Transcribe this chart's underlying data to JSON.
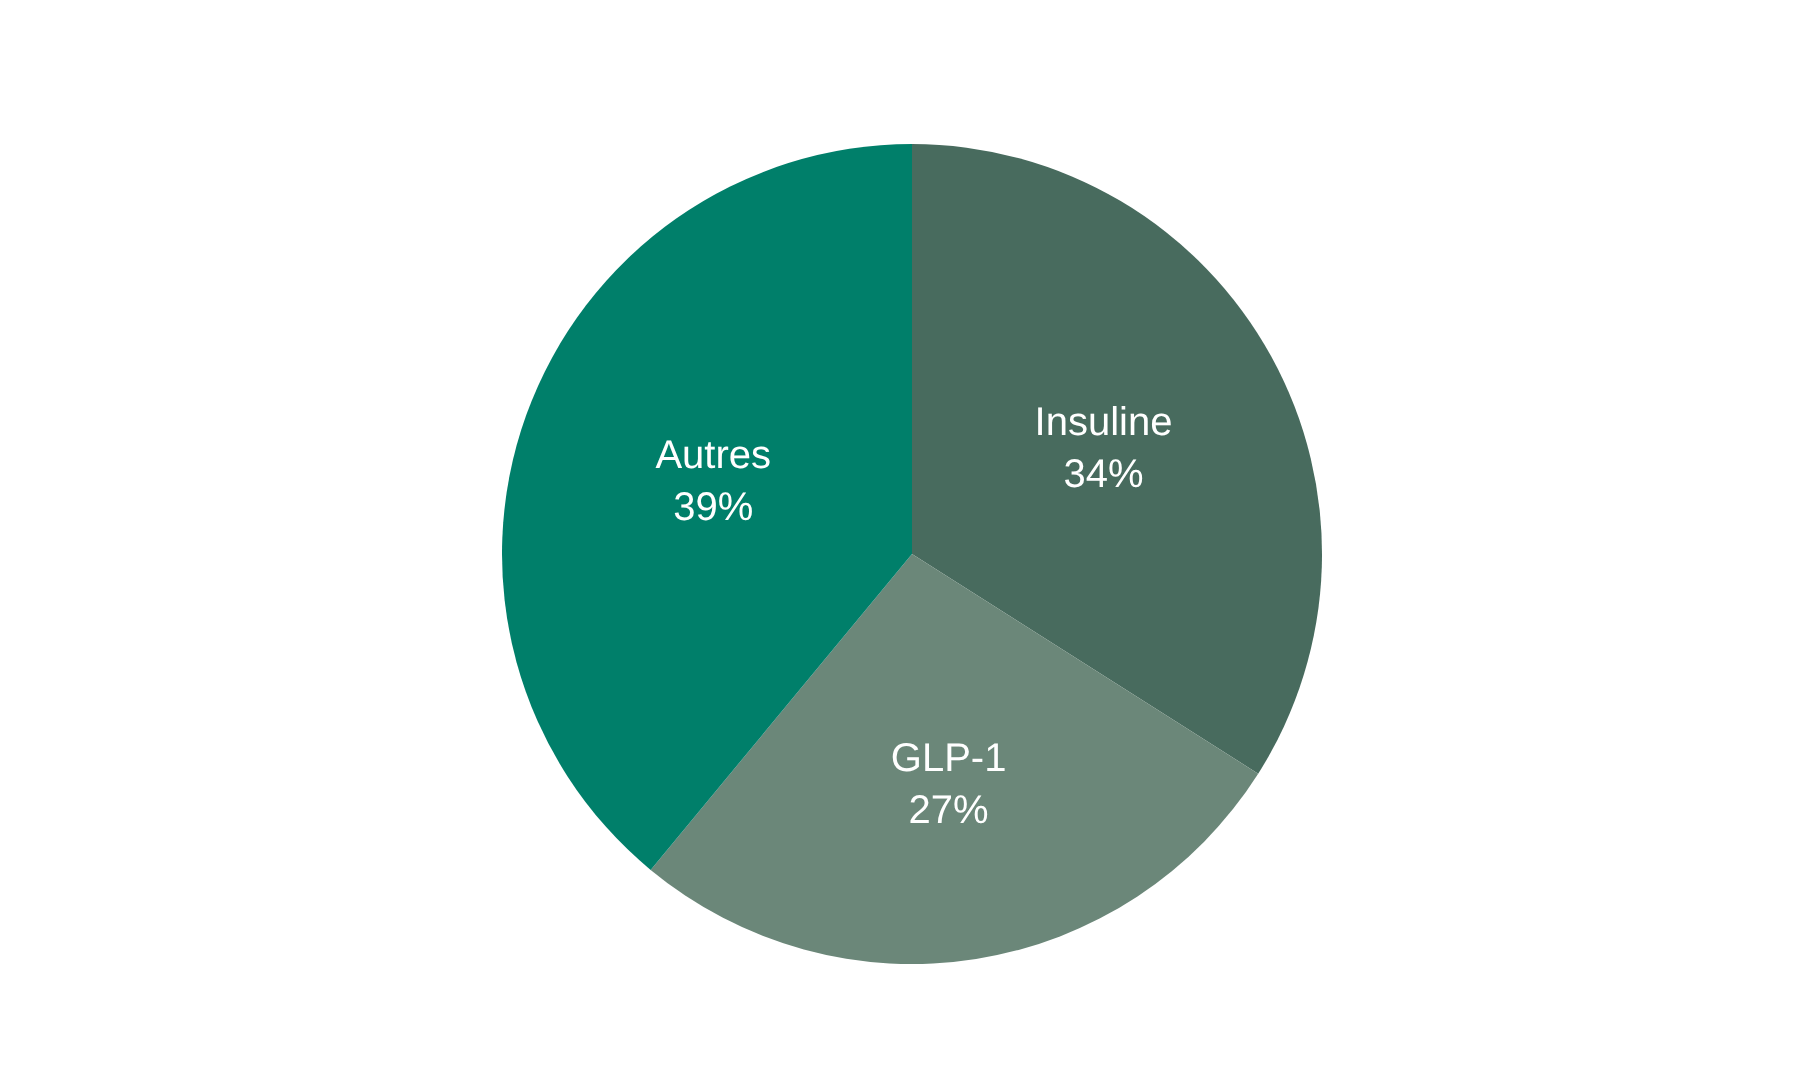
{
  "chart_data": {
    "type": "pie",
    "categories": [
      "Insuline",
      "GLP-1",
      "Autres"
    ],
    "values": [
      34,
      27,
      39
    ],
    "value_labels": [
      "34%",
      "27%",
      "39%"
    ],
    "colors": [
      "#486b5e",
      "#6b8779",
      "#007f6a"
    ],
    "legend": false
  }
}
